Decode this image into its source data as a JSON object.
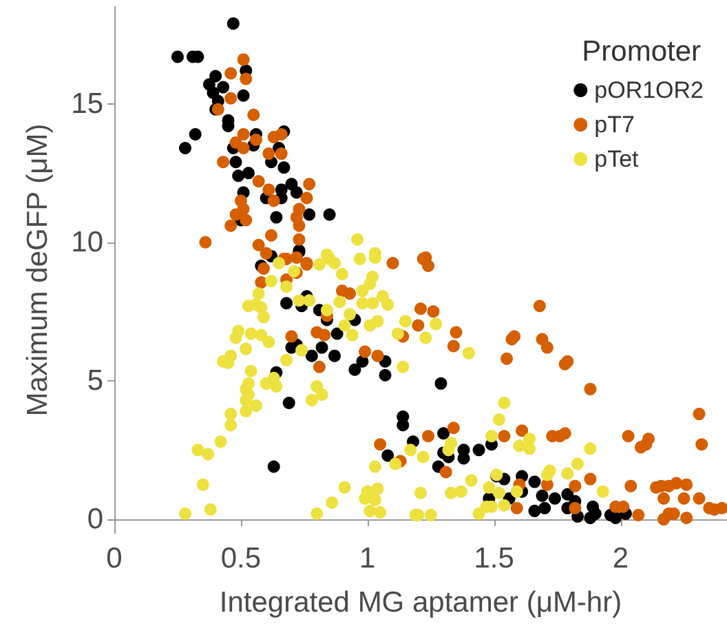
{
  "chart_data": {
    "type": "scatter",
    "xlabel": "Integrated MG aptamer (μM-hr)",
    "ylabel": "Maximum deGFP (μM)",
    "legend_title": "Promoter",
    "legend": "top right",
    "marker": "circle",
    "grid": false,
    "xlim": [
      0,
      2.42
    ],
    "ylim": [
      -0.5,
      18.5
    ],
    "xticks": [
      0,
      0.5,
      1,
      1.5,
      2
    ],
    "yticks": [
      0,
      5,
      10,
      15
    ],
    "series": [
      {
        "name": "pOR1OR2",
        "color": "#000000",
        "x": [
          0.47,
          0.25,
          0.31,
          0.33,
          0.4,
          0.52,
          0.375,
          0.43,
          0.39,
          0.51,
          0.41,
          0.4,
          0.45,
          0.45,
          0.32,
          0.28,
          0.47,
          0.55,
          0.56,
          0.67,
          0.65,
          0.62,
          0.67,
          0.48,
          0.49,
          0.53,
          0.7,
          0.66,
          0.72,
          0.6,
          0.66,
          0.51,
          0.77,
          0.85,
          0.64,
          0.5,
          0.73,
          0.58,
          0.62,
          0.73,
          0.76,
          0.68,
          0.74,
          0.81,
          0.84,
          0.88,
          0.95,
          0.7,
          0.72,
          0.82,
          0.78,
          0.87,
          0.98,
          0.95,
          1.07,
          1.07,
          0.64,
          0.69,
          0.63,
          1.14,
          1.14,
          1.18,
          1.08,
          1.29,
          1.3,
          1.3,
          1.28,
          1.32,
          1.38,
          1.38,
          1.44,
          1.49,
          1.51,
          1.54,
          1.61,
          1.66,
          1.48,
          1.56,
          1.61,
          1.66,
          1.69,
          1.7,
          1.74,
          1.79,
          1.79,
          1.82,
          1.83,
          1.89,
          1.9,
          1.88,
          1.96,
          1.98,
          2.02
        ],
        "values": [
          17.9,
          16.7,
          16.7,
          16.7,
          16.0,
          16.2,
          15.7,
          15.6,
          15.4,
          15.3,
          15.1,
          14.8,
          14.4,
          14.2,
          13.9,
          13.4,
          13.4,
          13.5,
          13.9,
          14.0,
          13.4,
          12.9,
          12.7,
          12.9,
          12.4,
          12.5,
          12.1,
          11.9,
          11.8,
          11.6,
          11.6,
          11.8,
          11.0,
          11.0,
          10.9,
          10.8,
          9.65,
          9.15,
          9.5,
          9.7,
          8.05,
          7.8,
          7.7,
          7.55,
          7.2,
          6.7,
          7.2,
          6.2,
          6.3,
          6.2,
          5.9,
          5.9,
          5.7,
          5.4,
          5.7,
          5.2,
          5.3,
          4.2,
          1.9,
          3.7,
          3.4,
          2.8,
          2.3,
          4.9,
          3.1,
          2.4,
          1.9,
          2.25,
          2.5,
          2.2,
          2.5,
          2.7,
          1.55,
          1.45,
          1.55,
          1.35,
          0.75,
          0.75,
          1.0,
          0.3,
          0.85,
          0.4,
          0.75,
          0.9,
          0.4,
          0.65,
          0.1,
          0.45,
          0.2,
          0.05,
          0.15,
          0.05,
          0.2
        ]
      },
      {
        "name": "pT7",
        "color": "#d65f00",
        "x": [
          0.51,
          0.52,
          0.46,
          0.46,
          0.41,
          0.55,
          0.51,
          0.48,
          0.56,
          0.51,
          0.43,
          0.63,
          0.66,
          0.61,
          0.66,
          0.57,
          0.61,
          0.77,
          0.76,
          0.63,
          0.5,
          0.51,
          0.48,
          0.52,
          0.46,
          0.73,
          0.72,
          0.73,
          0.62,
          0.73,
          0.36,
          0.57,
          0.6,
          0.68,
          0.76,
          1.1,
          1.22,
          0.59,
          0.58,
          0.67,
          0.72,
          0.76,
          0.72,
          0.68,
          0.9,
          0.93,
          0.84,
          0.8,
          0.83,
          0.7,
          0.99,
          1.04,
          0.81,
          1.05,
          1.13,
          1.21,
          1.2,
          1.14,
          1.23,
          1.24,
          1.26,
          1.35,
          1.34,
          1.68,
          1.57,
          1.58,
          1.69,
          1.71,
          1.55,
          1.78,
          1.79,
          1.88,
          2.31,
          2.32,
          1.34,
          1.24,
          1.31,
          1.54,
          1.61,
          1.73,
          1.76,
          1.78,
          2.03,
          2.08,
          2.11,
          2.1,
          1.88,
          1.82,
          1.71,
          1.6,
          1.59,
          1.82,
          1.98,
          2.01,
          2.07,
          2.04,
          2.14,
          2.16,
          2.17,
          2.19,
          2.22,
          2.26,
          2.25,
          2.31,
          2.17,
          2.19,
          2.21,
          2.26,
          2.35,
          2.37,
          2.4
        ],
        "values": [
          16.6,
          15.9,
          16.1,
          15.2,
          14.8,
          14.6,
          13.9,
          13.6,
          13.7,
          13.4,
          12.9,
          13.8,
          13.9,
          13.2,
          13.2,
          12.2,
          11.9,
          12.1,
          11.6,
          11.5,
          11.5,
          11.2,
          11.0,
          10.8,
          10.6,
          11.2,
          10.9,
          10.6,
          10.25,
          10.1,
          10.0,
          9.9,
          9.6,
          9.4,
          9.25,
          9.25,
          9.4,
          9.05,
          8.55,
          9.4,
          9.45,
          9.2,
          8.9,
          8.65,
          8.25,
          8.15,
          7.35,
          6.75,
          6.65,
          6.6,
          6.05,
          5.9,
          5.5,
          2.7,
          2.1,
          7.6,
          7.0,
          6.6,
          9.45,
          9.15,
          7.5,
          6.75,
          6.25,
          7.7,
          6.5,
          6.6,
          6.5,
          6.2,
          5.8,
          5.6,
          5.7,
          4.7,
          3.8,
          2.7,
          3.3,
          3.0,
          1.7,
          3.0,
          3.2,
          3.0,
          3.0,
          3.1,
          3.0,
          2.6,
          2.9,
          2.7,
          1.45,
          1.2,
          1.25,
          1.25,
          0.4,
          0.4,
          0.45,
          0.45,
          0.15,
          1.2,
          1.15,
          1.2,
          0.75,
          1.2,
          1.3,
          1.25,
          0.75,
          0.75,
          0.0,
          0.2,
          0.2,
          0.05,
          0.4,
          0.35,
          0.4
        ]
      },
      {
        "name": "pTet",
        "color": "#ede13f",
        "x": [
          0.96,
          0.84,
          0.85,
          0.97,
          1.03,
          1.03,
          0.65,
          0.87,
          0.81,
          0.9,
          1.02,
          1.01,
          0.98,
          0.62,
          0.68,
          0.71,
          0.57,
          0.53,
          0.56,
          0.58,
          0.59,
          0.73,
          0.77,
          0.84,
          0.89,
          0.98,
          1.02,
          1.08,
          1.06,
          0.93,
          0.91,
          0.94,
          1.01,
          1.04,
          1.15,
          1.12,
          1.14,
          0.49,
          0.48,
          0.54,
          0.58,
          0.61,
          0.52,
          0.46,
          0.43,
          0.45,
          0.68,
          0.74,
          0.54,
          0.53,
          0.52,
          0.53,
          0.52,
          0.56,
          0.52,
          0.6,
          0.63,
          0.64,
          0.8,
          0.82,
          0.78,
          0.46,
          0.46,
          0.42,
          0.33,
          0.37,
          0.35,
          0.38,
          0.28,
          0.8,
          0.86,
          0.91,
          1.0,
          1.04,
          0.99,
          1.03,
          1.01,
          1.05,
          1.03,
          1.11,
          1.17,
          1.22,
          1.21,
          1.2,
          1.27,
          1.23,
          1.4,
          1.54,
          1.52,
          1.49,
          1.64,
          1.64,
          1.6,
          1.88,
          1.33,
          1.32,
          1.19,
          1.25,
          1.33,
          1.37,
          1.41,
          1.48,
          1.51,
          1.52,
          1.54,
          1.59,
          1.44,
          1.47,
          1.49,
          1.71,
          1.72,
          1.79,
          1.83,
          1.93
        ],
        "values": [
          10.1,
          9.55,
          9.4,
          9.4,
          9.6,
          9.45,
          9.25,
          9.25,
          9.2,
          8.85,
          8.75,
          8.5,
          8.25,
          8.6,
          8.4,
          8.95,
          8.15,
          7.7,
          7.75,
          7.65,
          7.3,
          7.9,
          7.9,
          7.55,
          7.85,
          7.8,
          7.8,
          7.75,
          8.05,
          7.4,
          7.0,
          6.65,
          7.0,
          7.15,
          7.15,
          6.7,
          5.5,
          6.8,
          6.55,
          6.7,
          6.65,
          6.4,
          6.15,
          5.9,
          5.7,
          5.65,
          5.75,
          6.1,
          5.35,
          4.9,
          4.7,
          4.5,
          4.3,
          4.1,
          3.9,
          4.9,
          5.1,
          4.8,
          4.8,
          4.5,
          4.3,
          3.8,
          3.4,
          2.8,
          2.5,
          2.35,
          1.25,
          0.35,
          0.2,
          0.2,
          0.6,
          1.15,
          1.0,
          1.1,
          0.75,
          0.7,
          0.3,
          0.25,
          1.9,
          2.0,
          2.5,
          2.25,
          0.95,
          0.15,
          7.05,
          6.55,
          6.0,
          4.2,
          3.6,
          3.0,
          2.9,
          2.55,
          2.65,
          2.55,
          2.75,
          2.5,
          0.15,
          0.15,
          0.95,
          1.0,
          1.4,
          1.15,
          1.6,
          0.95,
          0.5,
          1.0,
          0.2,
          0.45,
          0.45,
          1.6,
          1.75,
          1.65,
          2.0,
          1.0
        ]
      }
    ]
  }
}
